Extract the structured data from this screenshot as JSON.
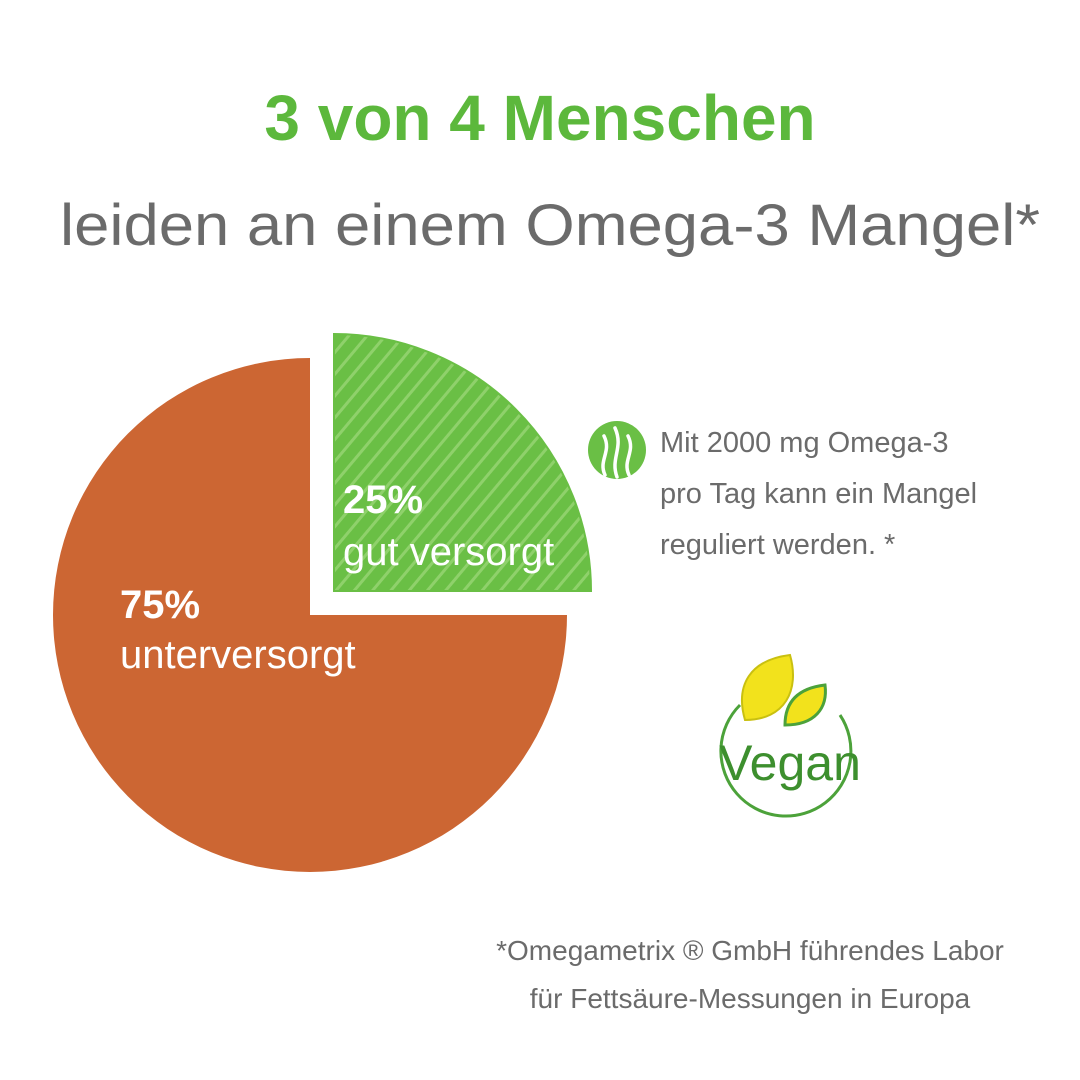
{
  "chart_data": {
    "type": "pie",
    "title": "3 von 4 Menschen",
    "subtitle": "leiden an einem Omega-3 Mangel*",
    "categories": [
      "unterversorgt",
      "gut versorgt"
    ],
    "values": [
      75,
      25
    ],
    "value_labels": [
      "75%",
      "25%"
    ],
    "colors": [
      "#cc6633",
      "#6abf45"
    ]
  },
  "note": [
    "Mit 2000 mg Omega-3",
    "pro Tag kann ein Mangel",
    "reguliert werden. *"
  ],
  "badge": "Vegan",
  "footnote": [
    "*Omegametrix ® GmbH führendes Labor",
    "für Fettsäure-Messungen in Europa"
  ]
}
